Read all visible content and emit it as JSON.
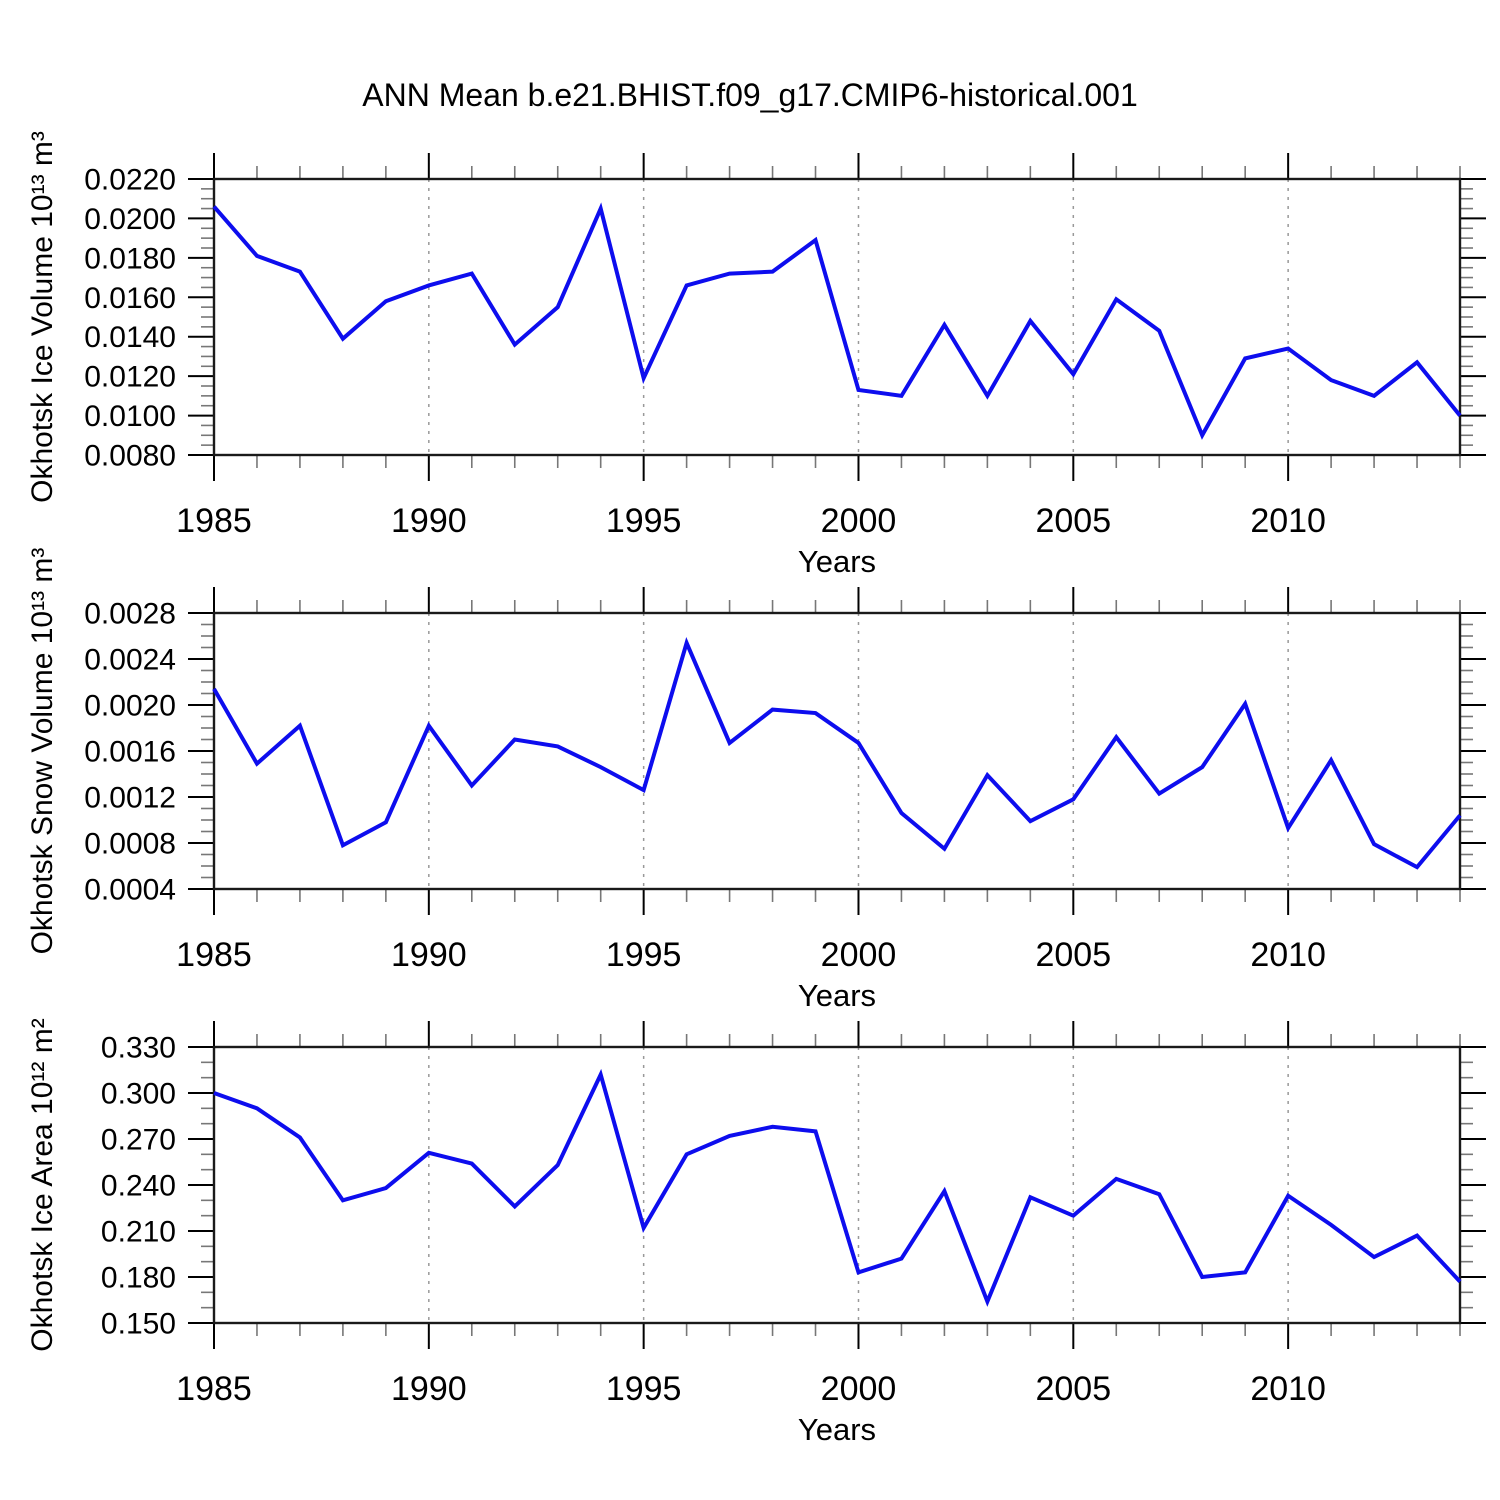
{
  "chart_data": {
    "type": "line",
    "title": "ANN Mean b.e21.BHIST.f09_g17.CMIP6-historical.001",
    "xlabel": "Years",
    "legend": "none",
    "grid": "vertical-dashed",
    "line_color": "#0d0dee",
    "x_range": [
      1985,
      2014
    ],
    "x_years": [
      1985,
      1986,
      1987,
      1988,
      1989,
      1990,
      1991,
      1992,
      1993,
      1994,
      1995,
      1996,
      1997,
      1998,
      1999,
      2000,
      2001,
      2002,
      2003,
      2004,
      2005,
      2006,
      2007,
      2008,
      2009,
      2010,
      2011,
      2012,
      2013,
      2014
    ],
    "x_major_ticks": [
      1985,
      1990,
      1995,
      2000,
      2005,
      2010
    ],
    "x_minor_step": 1,
    "x_gridlines": [
      1990,
      1995,
      2000,
      2005,
      2010
    ],
    "panels": [
      {
        "id": "okhotsk-ice-volume",
        "ylabel": "Okhotsk Ice Volume 10¹³ m³",
        "ylim": [
          0.008,
          0.022
        ],
        "ytick_labels": [
          "0.0080",
          "0.0100",
          "0.0120",
          "0.0140",
          "0.0160",
          "0.0180",
          "0.0200",
          "0.0220"
        ],
        "ytick_minor_step": 0.0005,
        "series": [
          {
            "name": "ANN mean ice volume",
            "values": [
              0.0206,
              0.0181,
              0.0173,
              0.0139,
              0.0158,
              0.0166,
              0.0172,
              0.0136,
              0.0155,
              0.0205,
              0.0119,
              0.0166,
              0.0172,
              0.0173,
              0.0189,
              0.0113,
              0.011,
              0.0146,
              0.011,
              0.0148,
              0.0121,
              0.0159,
              0.0143,
              0.009,
              0.0129,
              0.0134,
              0.0118,
              0.011,
              0.0127,
              0.01
            ]
          }
        ]
      },
      {
        "id": "okhotsk-snow-volume",
        "ylabel": "Okhotsk Snow Volume 10¹³ m³",
        "ylim": [
          0.0004,
          0.0028
        ],
        "ytick_labels": [
          "0.0004",
          "0.0008",
          "0.0012",
          "0.0016",
          "0.0020",
          "0.0024",
          "0.0028"
        ],
        "ytick_minor_step": 0.0001,
        "series": [
          {
            "name": "ANN mean snow volume",
            "values": [
              0.00214,
              0.00149,
              0.00182,
              0.00078,
              0.00098,
              0.00182,
              0.0013,
              0.0017,
              0.00164,
              0.00146,
              0.00126,
              0.00254,
              0.00167,
              0.00196,
              0.00193,
              0.00167,
              0.00106,
              0.00075,
              0.00139,
              0.00099,
              0.00118,
              0.00172,
              0.00123,
              0.00146,
              0.00201,
              0.00093,
              0.00152,
              0.00079,
              0.00059,
              0.00104
            ]
          }
        ]
      },
      {
        "id": "okhotsk-ice-area",
        "ylabel": "Okhotsk Ice Area 10¹² m²",
        "ylim": [
          0.15,
          0.33
        ],
        "ytick_labels": [
          "0.150",
          "0.180",
          "0.210",
          "0.240",
          "0.270",
          "0.300",
          "0.330"
        ],
        "ytick_minor_step": 0.01,
        "series": [
          {
            "name": "ANN mean ice area",
            "values": [
              0.3,
              0.29,
              0.271,
              0.23,
              0.238,
              0.261,
              0.254,
              0.226,
              0.253,
              0.312,
              0.212,
              0.26,
              0.272,
              0.278,
              0.275,
              0.183,
              0.192,
              0.236,
              0.164,
              0.232,
              0.22,
              0.244,
              0.234,
              0.18,
              0.183,
              0.233,
              0.214,
              0.193,
              0.207,
              0.177
            ]
          }
        ]
      }
    ]
  }
}
